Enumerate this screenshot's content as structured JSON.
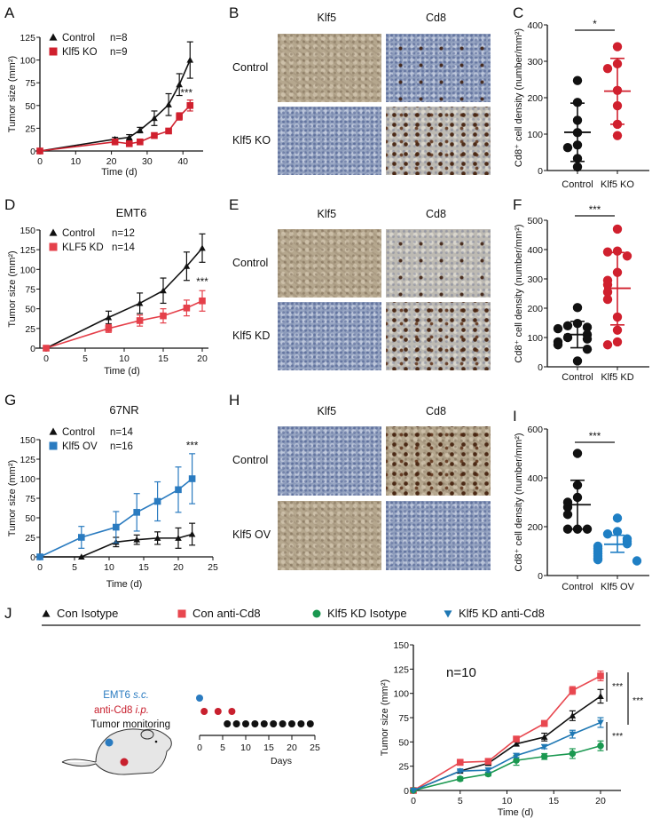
{
  "panel_labels": [
    "A",
    "B",
    "C",
    "D",
    "E",
    "F",
    "G",
    "H",
    "I",
    "J"
  ],
  "chart_data": [
    {
      "id": "A",
      "type": "line",
      "title": "",
      "xlabel": "Time (d)",
      "ylabel": "Tumor size (mm²)",
      "xlim": [
        0,
        45
      ],
      "ylim": [
        0,
        125
      ],
      "xticks": [
        0,
        10,
        20,
        30,
        40
      ],
      "yticks": [
        0,
        25,
        50,
        75,
        100,
        125
      ],
      "series": [
        {
          "name": "Control",
          "n": "n=8",
          "marker": "triangle",
          "color": "#111111",
          "x": [
            0,
            21,
            25,
            28,
            32,
            36,
            39,
            42
          ],
          "y": [
            0,
            13,
            15,
            23,
            36,
            51,
            73,
            100
          ],
          "err": [
            0,
            2,
            3,
            3,
            8,
            12,
            12,
            20
          ]
        },
        {
          "name": "Klf5 KO",
          "n": "n=9",
          "marker": "square",
          "color": "#d0202e",
          "x": [
            0,
            21,
            25,
            28,
            32,
            36,
            39,
            42
          ],
          "y": [
            0,
            10,
            8,
            10,
            17,
            22,
            38,
            50
          ],
          "err": [
            0,
            2,
            1,
            2,
            3,
            2,
            4,
            6
          ]
        }
      ],
      "annotations": [
        {
          "text": "***",
          "x": 41,
          "y": 60
        }
      ]
    },
    {
      "id": "C",
      "type": "scatter",
      "ylabel": "Cd8⁺ cell density (number/mm²)",
      "ylim": [
        0,
        400
      ],
      "yticks": [
        0,
        100,
        200,
        300,
        400
      ],
      "categories": [
        "Control",
        "Klf5 KO"
      ],
      "groups": [
        {
          "color": "#111111",
          "values": [
            247,
            187,
            138,
            104,
            70,
            63,
            33,
            10
          ],
          "mean": 105,
          "sd_upper": 185,
          "sd_lower": 25
        },
        {
          "color": "#d0202e",
          "values": [
            340,
            293,
            280,
            220,
            178,
            127,
            96
          ],
          "mean": 218,
          "sd_upper": 308,
          "sd_lower": 127
        }
      ],
      "significance": "*"
    },
    {
      "id": "D",
      "type": "line",
      "title": "EMT6",
      "xlabel": "Time (d)",
      "ylabel": "Tumor size (mm²)",
      "xlim": [
        -1,
        21
      ],
      "ylim": [
        0,
        150
      ],
      "xticks": [
        0,
        5,
        10,
        15,
        20
      ],
      "yticks": [
        0,
        25,
        50,
        75,
        100,
        125,
        150
      ],
      "series": [
        {
          "name": "Control",
          "n": "n=12",
          "marker": "triangle",
          "color": "#111111",
          "x": [
            0,
            8,
            12,
            15,
            18,
            20
          ],
          "y": [
            0,
            39,
            57,
            73,
            104,
            127
          ],
          "err": [
            0,
            8,
            13,
            16,
            18,
            18
          ]
        },
        {
          "name": "KLF5 KD",
          "n": "n=14",
          "marker": "square",
          "color": "#e5404a",
          "x": [
            0,
            8,
            12,
            15,
            18,
            20
          ],
          "y": [
            0,
            25,
            35,
            41,
            51,
            60
          ],
          "err": [
            0,
            5,
            7,
            9,
            10,
            13
          ]
        }
      ],
      "annotations": [
        {
          "text": "***",
          "x": 20,
          "y": 80
        }
      ]
    },
    {
      "id": "F",
      "type": "scatter",
      "ylabel": "Cd8⁺ cell density (number/mm²)",
      "ylim": [
        0,
        500
      ],
      "yticks": [
        0,
        100,
        200,
        300,
        400,
        500
      ],
      "categories": [
        "Control",
        "Klf5 KD"
      ],
      "groups": [
        {
          "color": "#111111",
          "values": [
            202,
            148,
            140,
            135,
            130,
            110,
            100,
            95,
            85,
            75,
            60,
            20
          ],
          "mean": 110,
          "sd_upper": 155,
          "sd_lower": 65
        },
        {
          "color": "#d0202e",
          "values": [
            470,
            395,
            392,
            378,
            322,
            295,
            280,
            255,
            230,
            170,
            125,
            85,
            75
          ],
          "mean": 268,
          "sd_upper": 390,
          "sd_lower": 143
        }
      ],
      "significance": "***"
    },
    {
      "id": "G",
      "type": "line",
      "title": "67NR",
      "xlabel": "Time (d)",
      "ylabel": "Tumor size (mm²)",
      "xlim": [
        0,
        25
      ],
      "ylim": [
        0,
        150
      ],
      "xticks": [
        0,
        5,
        10,
        15,
        20,
        25
      ],
      "yticks": [
        0,
        25,
        50,
        75,
        100,
        125,
        150
      ],
      "series": [
        {
          "name": "Control",
          "n": "n=14",
          "marker": "triangle",
          "color": "#111111",
          "x": [
            0,
            6,
            11,
            14,
            17,
            20,
            22
          ],
          "y": [
            0,
            0,
            19,
            22,
            24,
            24,
            29
          ],
          "err": [
            0,
            0,
            6,
            6,
            8,
            13,
            14
          ]
        },
        {
          "name": "Klf5 OV",
          "n": "n=16",
          "marker": "square",
          "color": "#2a7bc0",
          "x": [
            0,
            6,
            11,
            14,
            17,
            20,
            22
          ],
          "y": [
            0,
            25,
            38,
            57,
            71,
            86,
            100
          ],
          "err": [
            0,
            14,
            20,
            24,
            25,
            29,
            32
          ]
        }
      ],
      "annotations": [
        {
          "text": "***",
          "x": 22,
          "y": 138
        }
      ]
    },
    {
      "id": "I",
      "type": "scatter",
      "ylabel": "Cd8⁺ cell density (number/mm²)",
      "ylim": [
        0,
        600
      ],
      "yticks": [
        0,
        200,
        400,
        600
      ],
      "categories": [
        "Control",
        "Klf5 OV"
      ],
      "groups": [
        {
          "color": "#111111",
          "values": [
            500,
            370,
            320,
            300,
            280,
            250,
            190,
            190,
            190
          ],
          "mean": 290,
          "sd_upper": 390,
          "sd_lower": 190
        },
        {
          "color": "#1f7fc4",
          "values": [
            235,
            180,
            170,
            150,
            140,
            130,
            120,
            110,
            100,
            90,
            80,
            70,
            65,
            60
          ],
          "mean": 128,
          "sd_upper": 165,
          "sd_lower": 95
        }
      ],
      "significance": "***"
    },
    {
      "id": "J",
      "type": "line",
      "title": "n=10",
      "xlabel": "Time (d)",
      "ylabel": "Tumor size (mm²)",
      "xlim": [
        0,
        22
      ],
      "ylim": [
        0,
        150
      ],
      "xticks": [
        0,
        5,
        10,
        15,
        20
      ],
      "yticks": [
        0,
        25,
        50,
        75,
        100,
        125,
        150
      ],
      "series": [
        {
          "name": "Con Isotype",
          "marker": "triangle",
          "color": "#111111",
          "x": [
            0,
            5,
            8,
            11,
            14,
            17,
            20
          ],
          "y": [
            0,
            20,
            28,
            48,
            55,
            77,
            97
          ],
          "err": [
            0,
            1,
            2,
            2,
            4,
            5,
            7
          ]
        },
        {
          "name": "Con anti-Cd8",
          "marker": "square",
          "color": "#e8474f",
          "x": [
            0,
            5,
            8,
            11,
            14,
            17,
            20
          ],
          "y": [
            0,
            29,
            30,
            53,
            69,
            103,
            118
          ],
          "err": [
            0,
            3,
            2,
            2,
            3,
            4,
            5
          ]
        },
        {
          "name": "Klf5 KD Isotype",
          "marker": "circle",
          "color": "#1a9850",
          "x": [
            0,
            5,
            8,
            11,
            14,
            17,
            20
          ],
          "y": [
            0,
            12,
            17,
            31,
            35,
            38,
            46
          ],
          "err": [
            0,
            2,
            2,
            5,
            3,
            5,
            5
          ]
        },
        {
          "name": "Klf5 KD anti-Cd8",
          "marker": "triangle-down",
          "color": "#1f78b4",
          "x": [
            0,
            5,
            8,
            11,
            14,
            17,
            20
          ],
          "y": [
            0,
            20,
            21,
            36,
            45,
            58,
            70
          ],
          "err": [
            0,
            1,
            2,
            2,
            2,
            4,
            5
          ]
        }
      ],
      "significance": [
        "***",
        "***",
        "***"
      ]
    }
  ],
  "micrographs": [
    {
      "panel": "B",
      "columns": [
        "Klf5",
        "Cd8"
      ],
      "rows": [
        "Control",
        "Klf5 KO"
      ],
      "stains": [
        [
          "brown",
          "blue-few-dots"
        ],
        [
          "blue",
          "gray-many-dots"
        ]
      ]
    },
    {
      "panel": "E",
      "columns": [
        "Klf5",
        "Cd8"
      ],
      "rows": [
        "Control",
        "Klf5 KD"
      ],
      "stains": [
        [
          "brown",
          "gray-few-dots"
        ],
        [
          "blue",
          "gray-many-dots"
        ]
      ]
    },
    {
      "panel": "H",
      "columns": [
        "Klf5",
        "Cd8"
      ],
      "rows": [
        "Control",
        "Klf5 OV"
      ],
      "stains": [
        [
          "blue",
          "brown-many-dots"
        ],
        [
          "brown",
          "blue"
        ]
      ]
    }
  ],
  "schedule": {
    "injection": {
      "label": "EMT6",
      "route": "s.c.",
      "color": "#2a7bc0",
      "days": [
        0
      ]
    },
    "antibody": {
      "label": "anti-Cd8",
      "route": "i.p.",
      "color": "#c8202e",
      "days": [
        1,
        4,
        7
      ]
    },
    "monitoring": {
      "label": "Tumor monitoring",
      "color": "#111111",
      "days": [
        6,
        8,
        10,
        12,
        14,
        16,
        18,
        20,
        22,
        24
      ]
    },
    "xticks": [
      0,
      5,
      10,
      15,
      20,
      25
    ],
    "xlabel": "Days"
  }
}
